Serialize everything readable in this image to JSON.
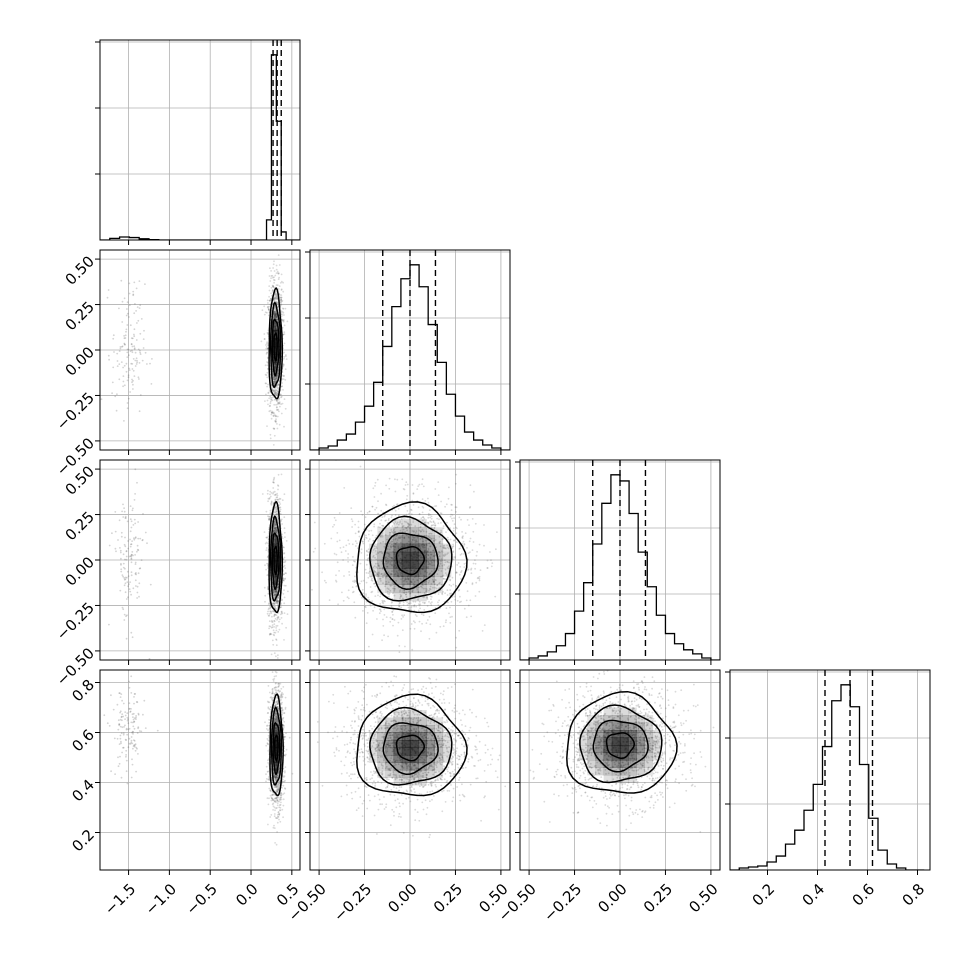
{
  "chart_data": {
    "type": "corner",
    "parameters": [
      {
        "range": [
          -1.85,
          0.6
        ],
        "ticks": [
          -1.5,
          -1.0,
          -0.5,
          0.0,
          0.5
        ],
        "tick_labels": [
          "−1.5",
          "−1.0",
          "−0.5",
          "0.0",
          "0.5"
        ],
        "quantiles": [
          0.27,
          0.32,
          0.37
        ],
        "hist": {
          "edges": [
            -1.85,
            -1.73,
            -1.61,
            -1.49,
            -1.37,
            -1.25,
            -1.13,
            -1.01,
            -0.89,
            -0.77,
            -0.65,
            -0.53,
            -0.41,
            -0.29,
            -0.17,
            -0.05,
            0.07,
            0.19,
            0.25,
            0.31,
            0.37,
            0.43,
            0.49,
            0.6
          ],
          "counts": [
            0.0,
            0.008,
            0.015,
            0.012,
            0.006,
            0.002,
            0.0,
            0.0,
            0.0,
            0.0,
            0.0,
            0.0,
            0.0,
            0.0,
            0.0,
            0.0,
            0.0,
            0.1,
            0.92,
            0.59,
            0.04,
            0.0,
            0.0
          ]
        }
      },
      {
        "range": [
          -0.55,
          0.55
        ],
        "ticks": [
          -0.5,
          -0.25,
          0.0,
          0.25,
          0.5
        ],
        "tick_labels": [
          "−0.50",
          "−0.25",
          "0.00",
          "0.25",
          "0.50"
        ],
        "quantiles": [
          -0.15,
          0.0,
          0.14
        ],
        "hist": {
          "edges": [
            -0.55,
            -0.5,
            -0.45,
            -0.4,
            -0.35,
            -0.3,
            -0.25,
            -0.2,
            -0.15,
            -0.1,
            -0.05,
            0.0,
            0.05,
            0.1,
            0.15,
            0.2,
            0.25,
            0.3,
            0.35,
            0.4,
            0.45,
            0.5,
            0.55
          ],
          "counts": [
            0.0,
            0.01,
            0.02,
            0.05,
            0.08,
            0.14,
            0.22,
            0.34,
            0.52,
            0.72,
            0.86,
            0.93,
            0.82,
            0.63,
            0.44,
            0.28,
            0.17,
            0.09,
            0.05,
            0.025,
            0.01,
            0.0
          ]
        }
      },
      {
        "range": [
          -0.55,
          0.55
        ],
        "ticks": [
          -0.5,
          -0.25,
          0.0,
          0.25,
          0.5
        ],
        "tick_labels": [
          "−0.50",
          "−0.25",
          "0.00",
          "0.25",
          "0.50"
        ],
        "quantiles": [
          -0.15,
          0.0,
          0.14
        ],
        "hist": {
          "edges": [
            -0.55,
            -0.5,
            -0.45,
            -0.4,
            -0.35,
            -0.3,
            -0.25,
            -0.2,
            -0.15,
            -0.1,
            -0.05,
            0.0,
            0.05,
            0.1,
            0.15,
            0.2,
            0.25,
            0.3,
            0.35,
            0.4,
            0.45,
            0.5,
            0.55
          ],
          "counts": [
            0.0,
            0.01,
            0.02,
            0.04,
            0.07,
            0.13,
            0.24,
            0.38,
            0.57,
            0.77,
            0.91,
            0.88,
            0.72,
            0.53,
            0.36,
            0.22,
            0.13,
            0.08,
            0.05,
            0.03,
            0.01,
            0.0
          ]
        }
      },
      {
        "range": [
          0.05,
          0.85
        ],
        "ticks": [
          0.2,
          0.4,
          0.6,
          0.8
        ],
        "tick_labels": [
          "0.2",
          "0.4",
          "0.6",
          "0.8"
        ],
        "quantiles": [
          0.43,
          0.53,
          0.62
        ],
        "hist": {
          "edges": [
            0.05,
            0.087,
            0.124,
            0.161,
            0.198,
            0.235,
            0.272,
            0.309,
            0.346,
            0.383,
            0.42,
            0.457,
            0.494,
            0.531,
            0.568,
            0.605,
            0.642,
            0.679,
            0.716,
            0.753,
            0.79,
            0.827
          ],
          "counts": [
            0.0,
            0.01,
            0.015,
            0.02,
            0.04,
            0.07,
            0.13,
            0.2,
            0.3,
            0.43,
            0.62,
            0.85,
            0.93,
            0.82,
            0.53,
            0.26,
            0.1,
            0.03,
            0.01,
            0.0,
            0.0
          ]
        }
      }
    ],
    "pairs": [
      {
        "x": 0,
        "y": 1,
        "mode": [
          0.3,
          0.02
        ],
        "main_sd": [
          0.04,
          0.15
        ],
        "outlier_center": [
          -1.5,
          0.0
        ],
        "outlier_sd": [
          0.1,
          0.18
        ]
      },
      {
        "x": 0,
        "y": 2,
        "mode": [
          0.3,
          0.0
        ],
        "main_sd": [
          0.04,
          0.15
        ],
        "outlier_center": [
          -1.5,
          0.0
        ],
        "outlier_sd": [
          0.1,
          0.18
        ]
      },
      {
        "x": 0,
        "y": 3,
        "mode": [
          0.31,
          0.54
        ],
        "main_sd": [
          0.04,
          0.1
        ],
        "outlier_center": [
          -1.5,
          0.6
        ],
        "outlier_sd": [
          0.1,
          0.09
        ]
      },
      {
        "x": 1,
        "y": 2,
        "mode": [
          0.0,
          0.0
        ],
        "main_sd": [
          0.15,
          0.15
        ]
      },
      {
        "x": 1,
        "y": 3,
        "mode": [
          0.0,
          0.54
        ],
        "main_sd": [
          0.15,
          0.1
        ]
      },
      {
        "x": 2,
        "y": 3,
        "mode": [
          0.0,
          0.55
        ],
        "main_sd": [
          0.15,
          0.1
        ]
      }
    ],
    "grid": true,
    "point_color": "#555555",
    "line_color": "#000000",
    "grid_color": "#b0b0b0",
    "cell_fill_color": "#000000"
  }
}
